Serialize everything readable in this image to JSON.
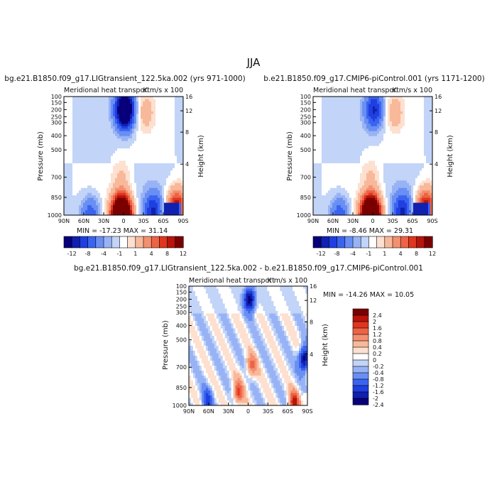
{
  "page_title": "JJA",
  "colorbar_palette": [
    "#08007a",
    "#1020b0",
    "#1f3fe0",
    "#3a64f0",
    "#6a8ff3",
    "#98b3f5",
    "#c2d4f7",
    "#ffffff",
    "#fde0cf",
    "#f8b89a",
    "#f39070",
    "#ee6345",
    "#e0351e",
    "#b8140a",
    "#7a0000"
  ],
  "chart_data": [
    {
      "type": "heatmap",
      "title": "bg.e21.B1850.f09_g17.LIGtransient_122.5ka.002 (yrs 971-1000)",
      "subtitle_left": "Meridional heat transport",
      "subtitle_right": "K m/s x 100",
      "xlabel": "",
      "ylabel": "Pressure (mb)",
      "ylabel_right": "Height (km)",
      "x_ticks": [
        "90N",
        "60N",
        "30N",
        "0",
        "30S",
        "60S",
        "90S"
      ],
      "y_ticks": [
        "100",
        "150",
        "200",
        "250",
        "300",
        "400",
        "500",
        "700",
        "850",
        "1000"
      ],
      "y2_ticks": [
        "16",
        "12",
        "8",
        "4"
      ],
      "min_max_text": "MIN = -17.23   MAX = 31.14",
      "min": -17.23,
      "max": 31.14,
      "features": [
        {
          "lat": -2,
          "p": 200,
          "value": -17.23
        },
        {
          "lat": -33,
          "p": 220,
          "value": 3
        },
        {
          "lat": 3,
          "p": 1000,
          "value": 31.14
        },
        {
          "lat": 50,
          "p": 1000,
          "value": -6
        },
        {
          "lat": -45,
          "p": 970,
          "value": -8
        },
        {
          "lat": -80,
          "p": 950,
          "value": 12
        },
        {
          "lat": 2,
          "p": 700,
          "value": 2
        }
      ]
    },
    {
      "type": "heatmap",
      "title": "b.e21.B1850.f09_g17.CMIP6-piControl.001 (yrs 1171-1200)",
      "subtitle_left": "Meridional heat transport",
      "subtitle_right": "K m/s x 100",
      "xlabel": "",
      "ylabel": "Pressure (mb)",
      "ylabel_right": "Height (km)",
      "x_ticks": [
        "90N",
        "60N",
        "30N",
        "0",
        "30S",
        "60S",
        "90S"
      ],
      "y_ticks": [
        "100",
        "150",
        "200",
        "250",
        "300",
        "400",
        "500",
        "700",
        "850",
        "1000"
      ],
      "y2_ticks": [
        "16",
        "12",
        "8",
        "4"
      ],
      "min_max_text": "MIN = -8.46   MAX = 29.31",
      "min": -8.46,
      "max": 29.31,
      "features": [
        {
          "lat": -2,
          "p": 200,
          "value": -8.46
        },
        {
          "lat": -33,
          "p": 220,
          "value": 3
        },
        {
          "lat": 3,
          "p": 1000,
          "value": 29.31
        },
        {
          "lat": 50,
          "p": 1000,
          "value": -6
        },
        {
          "lat": -45,
          "p": 970,
          "value": -8
        },
        {
          "lat": -80,
          "p": 950,
          "value": 12
        },
        {
          "lat": 2,
          "p": 700,
          "value": 2
        }
      ]
    },
    {
      "type": "heatmap",
      "title": "bg.e21.B1850.f09_g17.LIGtransient_122.5ka.002 - b.e21.B1850.f09_g17.CMIP6-piControl.001",
      "subtitle_left": "Meridional heat transport",
      "subtitle_right": "K m/s x 100",
      "xlabel": "",
      "ylabel": "Pressure (mb)",
      "ylabel_right": "Height (km)",
      "x_ticks": [
        "90N",
        "60N",
        "30N",
        "0",
        "30S",
        "60S",
        "90S"
      ],
      "y_ticks": [
        "100",
        "150",
        "200",
        "250",
        "300",
        "400",
        "500",
        "700",
        "850",
        "1000"
      ],
      "y2_ticks": [
        "16",
        "12",
        "8",
        "4"
      ],
      "min_max_text": "MIN = -14.26   MAX = 10.05",
      "min": -14.26,
      "max": 10.05,
      "features": [
        {
          "lat": -2,
          "p": 200,
          "value": -2.4
        },
        {
          "lat": 15,
          "p": 900,
          "value": 1.6
        },
        {
          "lat": -5,
          "p": 700,
          "value": 1.2
        },
        {
          "lat": 62,
          "p": 960,
          "value": -1.2
        },
        {
          "lat": -85,
          "p": 650,
          "value": -2.4
        },
        {
          "lat": -70,
          "p": 980,
          "value": 2
        }
      ]
    }
  ],
  "colorbars": [
    {
      "orientation": "horizontal",
      "levels": [
        -12,
        -10,
        -8,
        -6,
        -4,
        -2,
        -1,
        0,
        1,
        2,
        4,
        6,
        8,
        10,
        12
      ],
      "labels": [
        "-12",
        "-8",
        "-4",
        "-1",
        "1",
        "4",
        "8",
        "12"
      ]
    },
    {
      "orientation": "horizontal",
      "levels": [
        -12,
        -10,
        -8,
        -6,
        -4,
        -2,
        -1,
        0,
        1,
        2,
        4,
        6,
        8,
        10,
        12
      ],
      "labels": [
        "-12",
        "-8",
        "-4",
        "-1",
        "1",
        "4",
        "8",
        "12"
      ]
    },
    {
      "orientation": "vertical",
      "levels": [
        -2.4,
        -2,
        -1.6,
        -1.2,
        -0.8,
        -0.4,
        -0.2,
        0,
        0.2,
        0.4,
        0.8,
        1.2,
        1.6,
        2,
        2.4
      ],
      "labels": [
        "2.4",
        "2",
        "1.6",
        "1.2",
        "0.8",
        "0.4",
        "0.2",
        "0",
        "-0.2",
        "-0.4",
        "-0.8",
        "-1.2",
        "-1.6",
        "-2",
        "-2.4"
      ]
    }
  ]
}
